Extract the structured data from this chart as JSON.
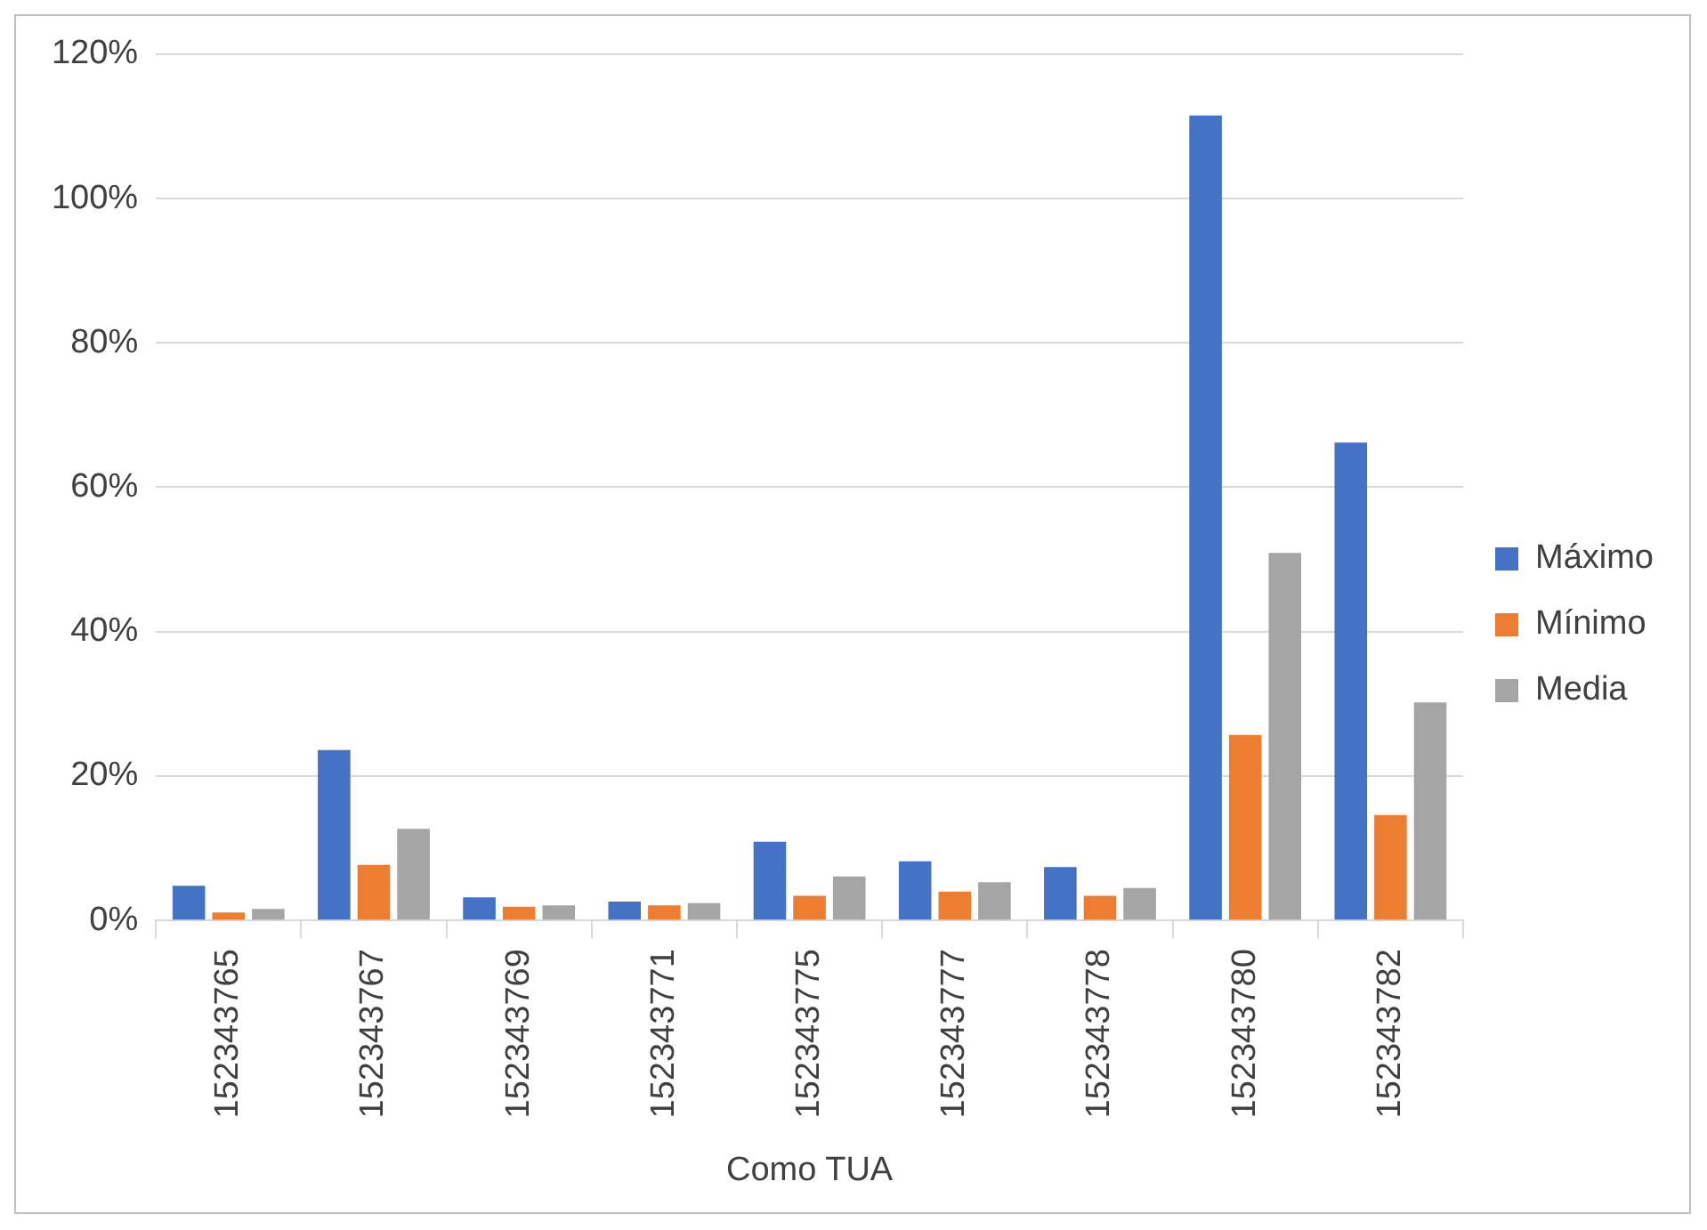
{
  "chart_data": {
    "type": "bar",
    "xlabel": "Como TUA",
    "categories": [
      "152343765",
      "152343767",
      "152343769",
      "152343771",
      "152343775",
      "152343777",
      "152343778",
      "152343780",
      "152343782"
    ],
    "series": [
      {
        "name": "Máximo",
        "color": "#4472c4",
        "values": [
          4.8,
          23.6,
          3.2,
          2.6,
          10.9,
          8.2,
          7.4,
          111.5,
          66.2
        ]
      },
      {
        "name": "Mínimo",
        "color": "#ed7d31",
        "values": [
          1.1,
          7.7,
          1.9,
          2.1,
          3.4,
          4.0,
          3.4,
          25.7,
          14.6
        ]
      },
      {
        "name": "Media",
        "color": "#a5a5a5",
        "values": [
          1.6,
          12.7,
          2.1,
          2.4,
          6.1,
          5.3,
          4.5,
          50.9,
          30.2
        ]
      }
    ],
    "ylim": [
      0,
      120
    ],
    "yticks": [
      {
        "value": 0,
        "label": "0%"
      },
      {
        "value": 20,
        "label": "20%"
      },
      {
        "value": 40,
        "label": "40%"
      },
      {
        "value": 60,
        "label": "60%"
      },
      {
        "value": 80,
        "label": "80%"
      },
      {
        "value": 100,
        "label": "100%"
      },
      {
        "value": 120,
        "label": "120%"
      }
    ],
    "grid": "y",
    "legend": "right"
  }
}
